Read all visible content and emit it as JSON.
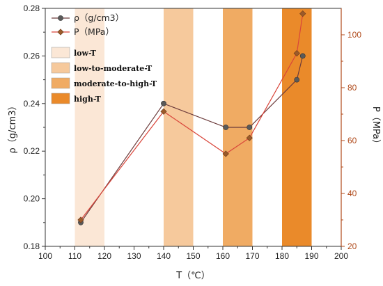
{
  "chart_data": {
    "type": "line",
    "x_axis": {
      "label": "T（℃）",
      "lim": [
        100,
        200
      ],
      "ticks": [
        100,
        110,
        120,
        130,
        140,
        150,
        160,
        170,
        180,
        190,
        200
      ]
    },
    "y_axis_left": {
      "label": "ρ（g/cm3）",
      "lim": [
        0.18,
        0.28
      ],
      "ticks": [
        "0.18",
        "0.20",
        "0.22",
        "0.24",
        "0.26",
        "0.28"
      ]
    },
    "y_axis_right": {
      "label": "P（MPa）",
      "lim": [
        20,
        110
      ],
      "ticks": [
        20,
        40,
        60,
        80,
        100
      ]
    },
    "grid": false,
    "legend_placement": "top-left",
    "bands": [
      {
        "name": "low-T",
        "x": [
          110,
          120
        ],
        "color": "#fbe7d6"
      },
      {
        "name": "low-to-moderate-T",
        "x": [
          140,
          150
        ],
        "color": "#f6c99c"
      },
      {
        "name": "moderate-to-high-T",
        "x": [
          160,
          170
        ],
        "color": "#f0ab63"
      },
      {
        "name": "high-T",
        "x": [
          180,
          190
        ],
        "color": "#ea8a2a"
      }
    ],
    "series": [
      {
        "name": "ρ（g/cm3）",
        "axis": "left",
        "color": "#5a5a5a",
        "line_color": "#6b3a3a",
        "marker": "circle",
        "x": [
          112,
          140,
          161,
          169,
          185,
          187
        ],
        "y": [
          0.19,
          0.24,
          0.23,
          0.23,
          0.25,
          0.26
        ]
      },
      {
        "name": "P（MPa）",
        "axis": "right",
        "color": "#9b5a2a",
        "line_color": "#d9453a",
        "marker": "diamond",
        "x": [
          112,
          140,
          161,
          169,
          185,
          187
        ],
        "y": [
          30,
          71,
          55,
          61,
          93,
          108
        ]
      }
    ]
  }
}
